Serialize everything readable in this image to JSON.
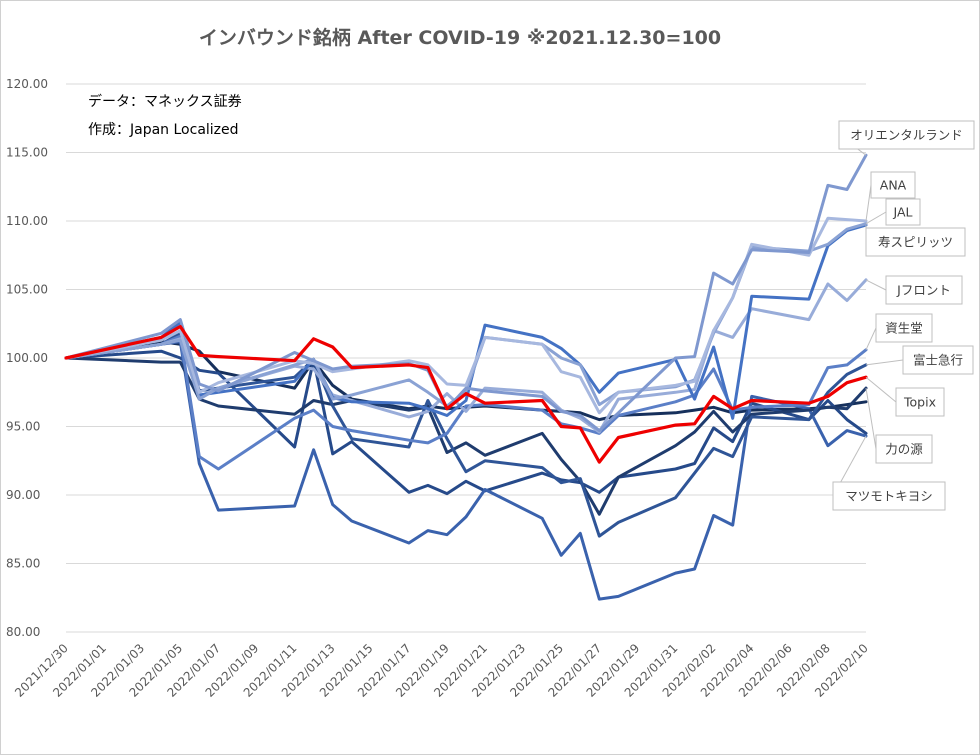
{
  "chart_data": {
    "type": "line",
    "title": "インバウンド銘柄 After COVID-19 ※2021.12.30=100",
    "notes": [
      "データ：マネックス証券",
      "作成：Japan Localized"
    ],
    "ylim": [
      80,
      120
    ],
    "yticks": [
      "80.00",
      "85.00",
      "90.00",
      "95.00",
      "100.00",
      "105.00",
      "110.00",
      "115.00",
      "120.00"
    ],
    "x": [
      "2021/12/30",
      "2022/01/04",
      "2022/01/05",
      "2022/01/06",
      "2022/01/07",
      "2022/01/11",
      "2022/01/12",
      "2022/01/13",
      "2022/01/14",
      "2022/01/17",
      "2022/01/18",
      "2022/01/19",
      "2022/01/20",
      "2022/01/21",
      "2022/01/24",
      "2022/01/25",
      "2022/01/26",
      "2022/01/27",
      "2022/01/28",
      "2022/01/31",
      "2022/02/01",
      "2022/02/02",
      "2022/02/03",
      "2022/02/04",
      "2022/02/07",
      "2022/02/08",
      "2022/02/09",
      "2022/02/10"
    ],
    "xticks": [
      "2021/12/30",
      "2022/01/01",
      "2022/01/03",
      "2022/01/05",
      "2022/01/07",
      "2022/01/09",
      "2022/01/11",
      "2022/01/13",
      "2022/01/15",
      "2022/01/17",
      "2022/01/19",
      "2022/01/21",
      "2022/01/23",
      "2022/01/25",
      "2022/01/27",
      "2022/01/29",
      "2022/01/31",
      "2022/02/02",
      "2022/02/04",
      "2022/02/06",
      "2022/02/08",
      "2022/02/10"
    ],
    "series": [
      {
        "name": "オリエンタルランド",
        "color": "#7f98cf",
        "values": [
          100,
          101.8,
          102.8,
          98.1,
          97.6,
          100.4,
          99.8,
          99.2,
          99.4,
          99.6,
          99.1,
          96.3,
          97.8,
          97.6,
          97.2,
          96.1,
          95.8,
          94.7,
          96.0,
          100.0,
          100.1,
          106.2,
          105.4,
          107.9,
          107.7,
          112.6,
          112.3,
          114.8
        ]
      },
      {
        "name": "ANA",
        "color": "#a7b8df",
        "values": [
          100,
          101.3,
          102.0,
          97.5,
          98.2,
          99.8,
          99.6,
          99.0,
          99.2,
          99.8,
          99.5,
          98.1,
          98.0,
          101.5,
          101.0,
          99.0,
          98.6,
          96.0,
          97.5,
          98.0,
          98.3,
          102.0,
          104.4,
          108.3,
          107.5,
          110.2,
          110.1,
          110.0
        ]
      },
      {
        "name": "JAL",
        "color": "#8aa2d4",
        "values": [
          100,
          101.0,
          101.3,
          97.0,
          97.8,
          99.5,
          99.9,
          97.0,
          97.3,
          98.4,
          97.5,
          96.5,
          97.6,
          101.5,
          101.0,
          100.0,
          99.5,
          96.6,
          97.5,
          97.9,
          98.4,
          101.8,
          104.4,
          108.1,
          107.8,
          108.3,
          109.4,
          109.8
        ]
      },
      {
        "name": "寿スピリッツ",
        "color": "#4472c4",
        "values": [
          100,
          101.5,
          102.6,
          97.3,
          97.5,
          98.3,
          99.9,
          97.1,
          96.8,
          96.7,
          96.3,
          95.8,
          96.9,
          102.4,
          101.5,
          100.7,
          99.5,
          97.5,
          98.9,
          99.9,
          97.0,
          100.8,
          95.6,
          104.5,
          104.3,
          108.2,
          109.3,
          109.7
        ]
      },
      {
        "name": "Jフロント",
        "color": "#98acd9",
        "values": [
          100,
          101.0,
          101.4,
          97.2,
          97.8,
          99.4,
          99.2,
          97.3,
          96.9,
          95.7,
          96.1,
          97.4,
          96.1,
          97.8,
          97.5,
          96.2,
          95.6,
          94.6,
          97.0,
          97.5,
          97.7,
          102.0,
          101.5,
          103.6,
          102.8,
          105.4,
          104.2,
          105.7
        ]
      },
      {
        "name": "資生堂",
        "color": "#5b7fc7",
        "values": [
          100,
          101.0,
          101.6,
          92.8,
          91.9,
          95.6,
          96.2,
          95.0,
          94.7,
          94.0,
          93.8,
          94.5,
          96.5,
          96.6,
          96.2,
          95.2,
          94.9,
          94.5,
          95.8,
          96.8,
          97.3,
          99.2,
          96.2,
          96.4,
          96.6,
          99.3,
          99.5,
          100.6
        ]
      },
      {
        "name": "富士急行",
        "color": "#2f5597",
        "values": [
          100,
          101.0,
          101.8,
          97.6,
          97.8,
          98.6,
          99.9,
          96.5,
          94.1,
          93.5,
          96.9,
          94.1,
          91.7,
          92.5,
          92.0,
          90.9,
          91.2,
          87.0,
          88.0,
          89.8,
          91.6,
          93.4,
          92.8,
          95.7,
          95.5,
          97.5,
          98.8,
          99.5
        ]
      },
      {
        "name": "Topix",
        "color": "#ee0000",
        "values": [
          100,
          101.5,
          102.3,
          100.2,
          100.1,
          99.8,
          101.4,
          100.8,
          99.3,
          99.5,
          99.3,
          96.3,
          97.4,
          96.7,
          96.9,
          95.0,
          94.9,
          92.4,
          94.2,
          95.1,
          95.2,
          97.2,
          96.3,
          96.9,
          96.7,
          97.2,
          98.2,
          98.6
        ]
      },
      {
        "name": "力の源",
        "color": "#1f3c6e",
        "values": [
          100,
          99.7,
          99.7,
          97.0,
          96.5,
          95.9,
          96.9,
          96.6,
          96.9,
          96.2,
          96.4,
          93.1,
          93.8,
          92.9,
          94.5,
          92.6,
          91.0,
          88.6,
          91.3,
          93.6,
          94.6,
          96.1,
          94.6,
          95.9,
          96.2,
          96.4,
          96.3,
          97.8
        ]
      },
      {
        "name": "マツモトキヨシ",
        "color": "#3a62ad",
        "values": [
          100,
          101.0,
          101.2,
          92.3,
          88.9,
          89.2,
          93.3,
          89.3,
          88.1,
          86.5,
          87.4,
          87.1,
          88.4,
          90.4,
          88.3,
          85.6,
          87.2,
          82.4,
          82.6,
          84.3,
          84.6,
          88.5,
          87.8,
          97.2,
          96.3,
          93.6,
          94.7,
          94.3
        ]
      },
      {
        "name": "",
        "color": "#264a8a",
        "values": [
          100,
          100.5,
          100.0,
          99.1,
          98.9,
          93.5,
          99.9,
          93.0,
          93.9,
          90.2,
          90.7,
          90.1,
          91.0,
          90.3,
          91.6,
          91.1,
          90.9,
          90.2,
          91.3,
          91.9,
          92.3,
          94.9,
          93.9,
          96.7,
          95.5,
          96.9,
          95.5,
          94.5
        ]
      },
      {
        "name": "",
        "color": "#16305c",
        "values": [
          100,
          101.2,
          101.0,
          100.5,
          99.0,
          97.8,
          99.8,
          98.0,
          97.0,
          96.3,
          96.5,
          96.3,
          96.4,
          96.5,
          96.2,
          96.1,
          96.0,
          95.5,
          95.8,
          96.0,
          96.2,
          96.4,
          96.0,
          96.2,
          96.3,
          96.4,
          96.6,
          96.8
        ]
      }
    ],
    "legend_style": "callout labels at right end of lines"
  }
}
